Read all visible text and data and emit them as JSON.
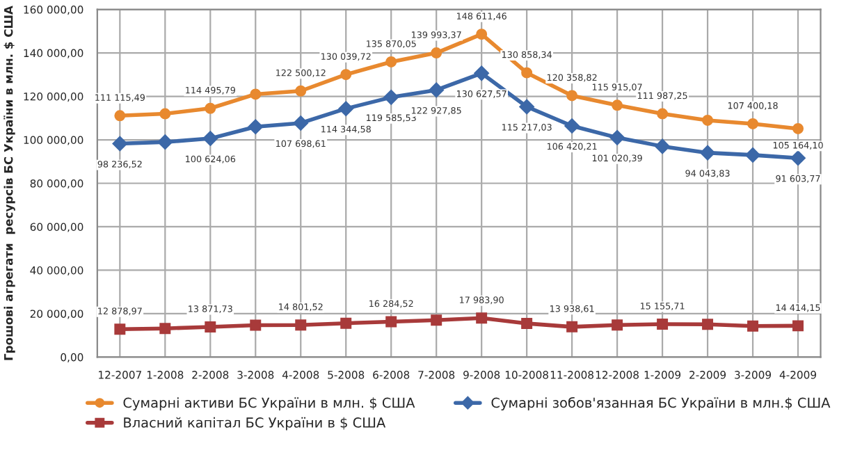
{
  "chart_data": {
    "type": "line",
    "ylabel": "Грошові агрегати  ресурсів БС України в млн. $ США",
    "categories": [
      "12-2007",
      "1-2008",
      "2-2008",
      "3-2008",
      "4-2008",
      "5-2008",
      "6-2008",
      "7-2008",
      "9-2008",
      "10-2008",
      "11-2008",
      "12-2008",
      "1-2009",
      "2-2009",
      "3-2009",
      "4-2009"
    ],
    "series": [
      {
        "name": "Сумарні активи БС України в млн. $ США",
        "color": "#e8892f",
        "marker": "circle",
        "values": [
          111115.49,
          112000,
          114495.79,
          121000,
          122500.12,
          130039.72,
          135870.05,
          139993.37,
          148611.46,
          130858.34,
          120358.82,
          115915.07,
          111987.25,
          109000,
          107400.18,
          105164.1
        ],
        "value_labels": [
          "111 115,49",
          null,
          "114 495,79",
          null,
          "122 500,12",
          "130 039,72",
          "135 870,05",
          "139 993,37",
          "148 611,46",
          "130 858,34",
          "120 358,82",
          "115 915,07",
          "111 987,25",
          null,
          "107 400,18",
          "105 164,10"
        ]
      },
      {
        "name": "Сумарні зобов'язанная БС України в млн.$ США",
        "color": "#3c68a8",
        "marker": "diamond",
        "values": [
          98236.52,
          99000,
          100624.06,
          106000,
          107698.61,
          114344.58,
          119585.53,
          122927.85,
          130627.57,
          115217.03,
          106420.21,
          101020.39,
          97000,
          94043.83,
          93000,
          91603.77
        ],
        "value_labels": [
          "98 236,52",
          null,
          "100 624,06",
          null,
          "107 698,61",
          "114 344,58",
          "119 585,53",
          "122 927,85",
          "130 627,57",
          "115 217,03",
          "106 420,21",
          "101 020,39",
          null,
          "94 043,83",
          null,
          "91 603,77"
        ]
      },
      {
        "name": "Власний капітал БС України в $ США",
        "color": "#a83a3a",
        "marker": "square",
        "values": [
          12878.97,
          13200,
          13871.73,
          14700,
          14801.52,
          15600,
          16284.52,
          17000,
          17983.9,
          15500,
          13938.61,
          14800,
          15155.71,
          15100,
          14300,
          14414.15
        ],
        "value_labels": [
          "12 878,97",
          null,
          "13 871,73",
          null,
          "14 801,52",
          null,
          "16 284,52",
          null,
          "17 983,90",
          null,
          "13 938,61",
          null,
          "15 155,71",
          null,
          null,
          "14 414,15"
        ]
      }
    ],
    "ylim": [
      0,
      160000
    ],
    "yticks": [
      {
        "value": 0,
        "label": "0,00"
      },
      {
        "value": 20000,
        "label": "20 000,00"
      },
      {
        "value": 40000,
        "label": "40 000,00"
      },
      {
        "value": 60000,
        "label": "60 000,00"
      },
      {
        "value": 80000,
        "label": "80 000,00"
      },
      {
        "value": 100000,
        "label": "100 000,00"
      },
      {
        "value": 120000,
        "label": "120 000,00"
      },
      {
        "value": 140000,
        "label": "140 000,00"
      },
      {
        "value": 160000,
        "label": "160 000,00"
      }
    ],
    "grid": true,
    "legend": "bottom"
  }
}
